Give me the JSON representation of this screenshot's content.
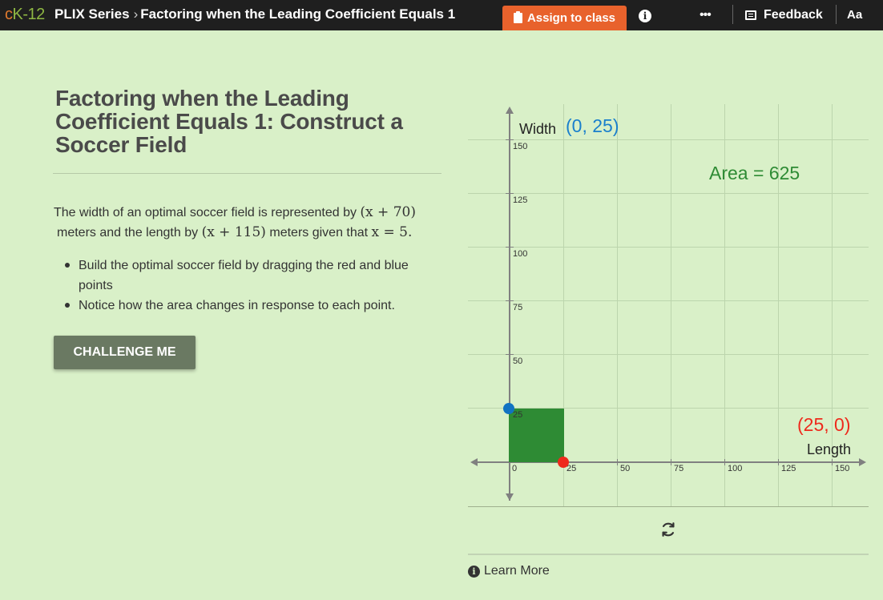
{
  "header": {
    "logo": {
      "c": "c",
      "k": "K-12"
    },
    "series": "PLIX Series",
    "breadcrumb_sep": "›",
    "page_name": "Factoring when the Leading Coefficient Equals 1",
    "assign_label": "Assign to class",
    "info_glyph": "i",
    "more_glyph": "•••",
    "feedback_label": "Feedback",
    "font_label": "Aa"
  },
  "content": {
    "title": "Factoring when the Leading Coefficient Equals 1: Construct a Soccer Field",
    "intro": {
      "p1": "The width of an optimal soccer field is represented by ",
      "m1": "(x + 70)",
      "p2": "meters and the length by ",
      "m2": "(x + 115)",
      "p3": " meters given that ",
      "m3": "x = 5",
      "p4": "."
    },
    "bullets": [
      "Build the optimal soccer field by dragging the red and blue points",
      "Notice how the area changes in response to each point."
    ],
    "challenge_label": "CHALLENGE ME"
  },
  "graph": {
    "y_label": "Width",
    "x_label": "Length",
    "blue_point_label": "(0, 25)",
    "red_point_label": "(25, 0)",
    "area_label": "Area = 625",
    "y_ticks": [
      "150",
      "125",
      "100",
      "75",
      "50",
      "25"
    ],
    "x_ticks": [
      "0",
      "25",
      "50",
      "75",
      "100",
      "125",
      "150"
    ],
    "colors": {
      "blue": "#1a7fcc",
      "red": "#ee2a1c",
      "green": "#2e8b34"
    }
  },
  "footer": {
    "learn_more": "Learn More",
    "info_glyph": "i"
  }
}
